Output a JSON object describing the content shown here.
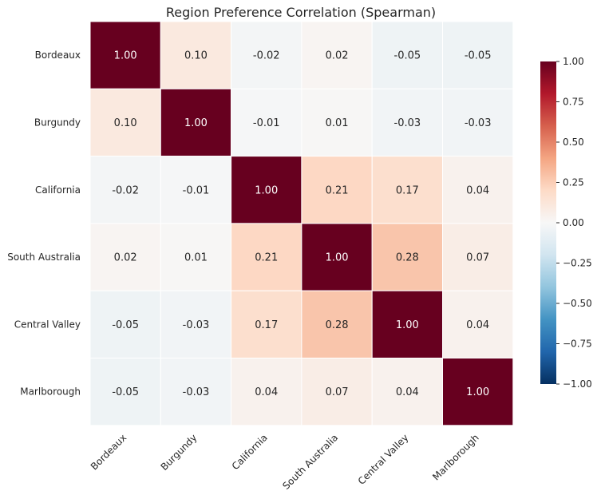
{
  "chart_data": {
    "type": "heatmap",
    "title": "Region Preference Correlation (Spearman)",
    "xlabel": "",
    "ylabel": "",
    "rows": [
      "Bordeaux",
      "Burgundy",
      "California",
      "South Australia",
      "Central Valley",
      "Marlborough"
    ],
    "columns": [
      "Bordeaux",
      "Burgundy",
      "California",
      "South Australia",
      "Central Valley",
      "Marlborough"
    ],
    "values": [
      [
        1.0,
        0.1,
        -0.02,
        0.02,
        -0.05,
        -0.05
      ],
      [
        0.1,
        1.0,
        -0.01,
        0.01,
        -0.03,
        -0.03
      ],
      [
        -0.02,
        -0.01,
        1.0,
        0.21,
        0.17,
        0.04
      ],
      [
        0.02,
        0.01,
        0.21,
        1.0,
        0.28,
        0.07
      ],
      [
        -0.05,
        -0.03,
        0.17,
        0.28,
        1.0,
        0.04
      ],
      [
        -0.05,
        -0.03,
        0.04,
        0.07,
        0.04,
        1.0
      ]
    ],
    "labels": [
      [
        "1.00",
        "0.10",
        "-0.02",
        "0.02",
        "-0.05",
        "-0.05"
      ],
      [
        "0.10",
        "1.00",
        "-0.01",
        "0.01",
        "-0.03",
        "-0.03"
      ],
      [
        "-0.02",
        "-0.01",
        "1.00",
        "0.21",
        "0.17",
        "0.04"
      ],
      [
        "0.02",
        "0.01",
        "0.21",
        "1.00",
        "0.28",
        "0.07"
      ],
      [
        "-0.05",
        "-0.03",
        "0.17",
        "0.28",
        "1.00",
        "0.04"
      ],
      [
        "-0.05",
        "-0.03",
        "0.04",
        "0.07",
        "0.04",
        "1.00"
      ]
    ],
    "colorbar": {
      "range": [
        -1.0,
        1.0
      ],
      "ticks": [
        1.0,
        0.75,
        0.5,
        0.25,
        0.0,
        -0.25,
        -0.5,
        -0.75,
        -1.0
      ],
      "tick_labels": [
        "1.00",
        "0.75",
        "0.50",
        "0.25",
        "0.00",
        "−0.25",
        "−0.50",
        "−0.75",
        "−1.00"
      ],
      "colormap": "RdBu_r",
      "stops": [
        "#053061",
        "#2166ac",
        "#4393c3",
        "#92c5de",
        "#d1e5f0",
        "#f7f7f7",
        "#fddbc7",
        "#f4a582",
        "#d6604d",
        "#b2182b",
        "#67001f"
      ]
    },
    "grid": false,
    "legend": "right"
  }
}
